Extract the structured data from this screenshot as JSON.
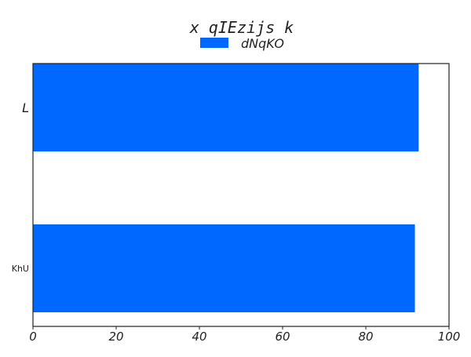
{
  "chart_data": {
    "type": "bar",
    "orientation": "horizontal",
    "title": "x qIEzijs k",
    "xlabel": "",
    "ylabel": "",
    "categories": [
      "L",
      "KhU"
    ],
    "series": [
      {
        "name": "dNqKO",
        "values": [
          92.7,
          91.8
        ],
        "color": "#0168ff"
      }
    ],
    "xlim": [
      0,
      100
    ],
    "xticks": [
      "0",
      "20",
      "40",
      "60",
      "80",
      "100"
    ],
    "grid": false,
    "legend_position": "top-center"
  }
}
